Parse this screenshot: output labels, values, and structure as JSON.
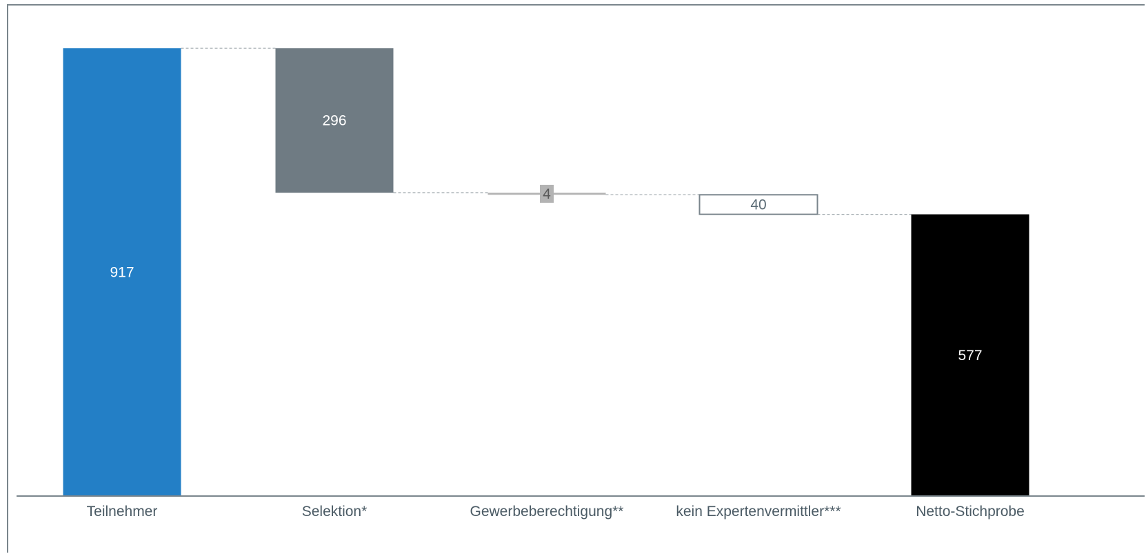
{
  "chart_data": {
    "type": "waterfall",
    "categories": [
      "Teilnehmer",
      "Selektion*",
      "Gewerbeberechtigung**",
      "kein Expertenvermittler***",
      "Netto-Stichprobe"
    ],
    "values": [
      917,
      296,
      4,
      40,
      577
    ],
    "kinds": [
      "total",
      "decrease",
      "decrease",
      "decrease",
      "total"
    ],
    "value_labels": [
      "917",
      "296",
      "4",
      "40",
      "577"
    ],
    "colors": {
      "total_start": "#237fc6",
      "selektion": "#6f7b83",
      "gewerbe": "#b3b3b3",
      "expert_border": "#7a858c",
      "total_end": "#000000",
      "connector": "#9aa3a8",
      "axis": "#7a858c"
    },
    "ylim": [
      0,
      917
    ],
    "grid": false,
    "legend": "none"
  }
}
